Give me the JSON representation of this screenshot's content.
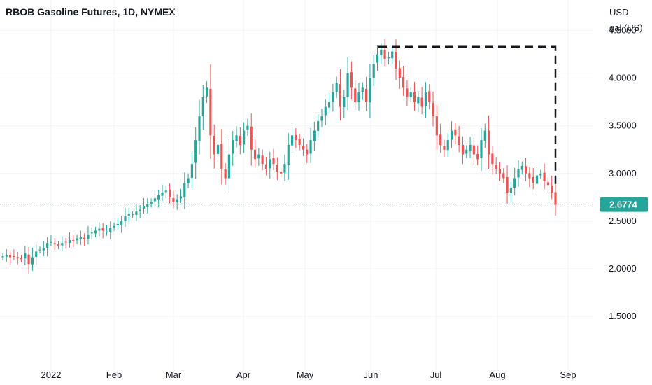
{
  "header": {
    "title": "RBOB Gasoline Futures, 1D, NYMEX",
    "currency_line1": "USD",
    "currency_line2": "gal (US)"
  },
  "colors": {
    "up": "#26a69a",
    "down": "#ef5350",
    "grid": "#f0f3fa",
    "price_line": "#26a69a",
    "price_label_bg": "#26a69a",
    "drawing": "#131722"
  },
  "chart_data": {
    "type": "candlestick",
    "ylim": [
      1.0,
      4.6
    ],
    "y_ticks": [
      "1.5000",
      "2.0000",
      "2.5000",
      "3.0000",
      "3.5000",
      "4.0000",
      "4.5000"
    ],
    "x_ticks": [
      "2022",
      "Feb",
      "Mar",
      "Apr",
      "May",
      "Jun",
      "Jul",
      "Aug",
      "Sep"
    ],
    "last_price": 2.6774,
    "last_price_label": "2.6774",
    "grid": true,
    "annotation": {
      "type": "dashed-line",
      "from_price": 4.33,
      "to_price": 2.85,
      "note": "horizontal from early-June high to late August, then vertical down"
    },
    "closes": [
      2.13,
      2.14,
      2.12,
      2.13,
      2.11,
      2.1,
      2.16,
      2.05,
      2.12,
      2.18,
      2.2,
      2.22,
      2.27,
      2.28,
      2.26,
      2.24,
      2.27,
      2.28,
      2.3,
      2.29,
      2.32,
      2.33,
      2.31,
      2.36,
      2.38,
      2.4,
      2.42,
      2.4,
      2.39,
      2.43,
      2.45,
      2.47,
      2.5,
      2.55,
      2.58,
      2.57,
      2.6,
      2.62,
      2.66,
      2.68,
      2.7,
      2.74,
      2.77,
      2.8,
      2.82,
      2.75,
      2.7,
      2.73,
      2.76,
      2.9,
      2.95,
      3.1,
      3.35,
      3.6,
      3.8,
      3.9,
      3.4,
      3.2,
      3.3,
      3.05,
      2.95,
      3.2,
      3.35,
      3.4,
      3.3,
      3.45,
      3.5,
      3.25,
      3.15,
      3.2,
      3.1,
      3.05,
      3.15,
      3.1,
      3.02,
      3.0,
      3.1,
      3.3,
      3.4,
      3.35,
      3.3,
      3.25,
      3.2,
      3.35,
      3.45,
      3.55,
      3.6,
      3.7,
      3.75,
      3.85,
      3.95,
      3.7,
      3.8,
      4.05,
      3.9,
      3.75,
      3.85,
      3.9,
      3.75,
      4.0,
      4.15,
      4.25,
      4.3,
      4.2,
      4.22,
      4.28,
      4.1,
      4.0,
      3.9,
      3.8,
      3.85,
      3.75,
      3.8,
      3.7,
      3.85,
      3.75,
      3.6,
      3.4,
      3.3,
      3.25,
      3.35,
      3.45,
      3.4,
      3.3,
      3.2,
      3.25,
      3.3,
      3.2,
      3.15,
      3.35,
      3.45,
      3.2,
      3.1,
      3.05,
      3.0,
      2.95,
      2.8,
      2.85,
      2.95,
      3.05,
      3.08,
      3.0,
      2.95,
      2.9,
      2.98,
      3.0,
      2.92,
      2.88,
      2.8,
      2.67
    ]
  }
}
